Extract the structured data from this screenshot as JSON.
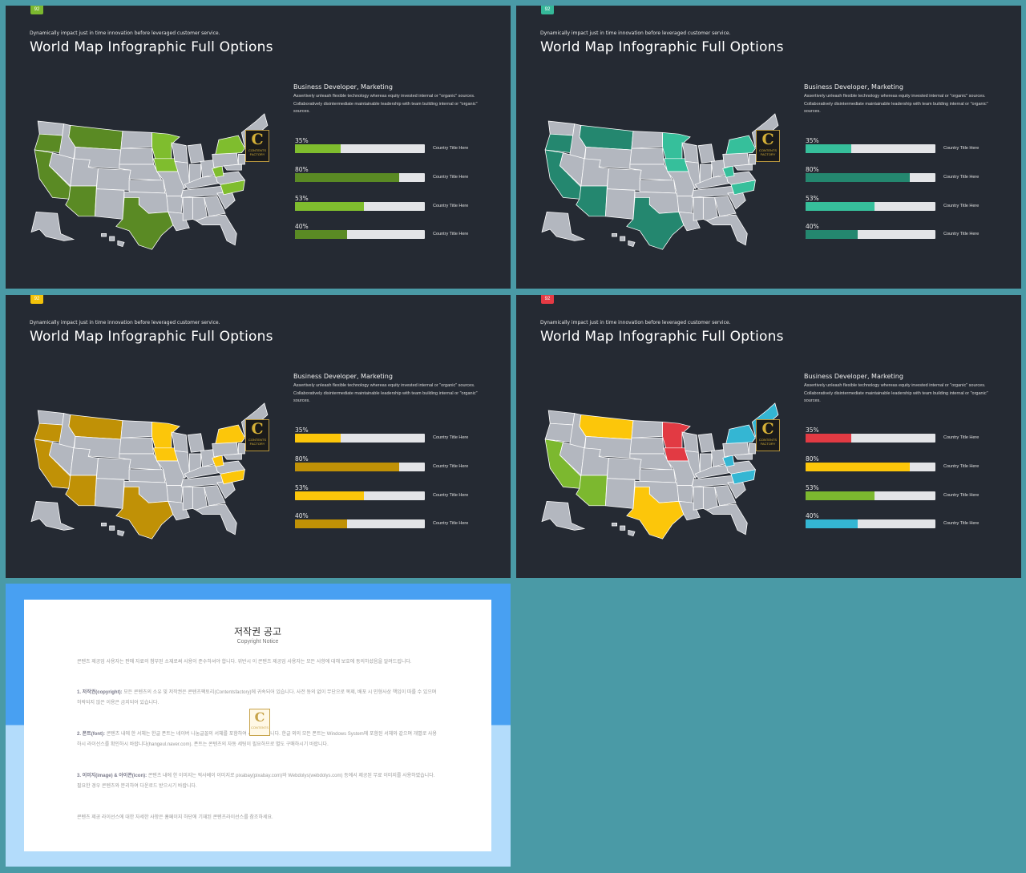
{
  "slides": [
    {
      "badge": "92",
      "badge_color": "#7cb82f",
      "subtitle": "Dynamically impact just in time innovation  before leveraged customer service.",
      "title": "World Map Infographic Full Options",
      "info_heading": "Business  Developer, Marketing",
      "info_text": "Assertively unleash flexible technology whereas equity invested internal or \"organic\" sources. Collaboratively disintermediate maintainable leadership with team building internal or \"organic\" sources.",
      "logo_letter": "C",
      "logo_text": "CONTENTS\nFACTORY",
      "colors": {
        "light": "#7fbd2e",
        "dark": "#5a8a24",
        "base": "#b3b7bf"
      },
      "bars": [
        {
          "pct_label": "35%",
          "value": 0.35,
          "color": "#7fbd2e",
          "label": "Country Title Here"
        },
        {
          "pct_label": "80%",
          "value": 0.8,
          "color": "#5a8a24",
          "label": "Country Title Here"
        },
        {
          "pct_label": "53%",
          "value": 0.53,
          "color": "#7fbd2e",
          "label": "Country Title Here"
        },
        {
          "pct_label": "40%",
          "value": 0.4,
          "color": "#5a8a24",
          "label": "Country Title Here"
        }
      ]
    },
    {
      "badge": "92",
      "badge_color": "#35b899",
      "subtitle": "Dynamically impact just in time innovation  before leveraged customer service.",
      "title": "World Map Infographic Full Options",
      "info_heading": "Business  Developer, Marketing",
      "info_text": "Assertively unleash flexible technology whereas equity invested internal or \"organic\" sources. Collaboratively disintermediate maintainable leadership with team building internal or \"organic\" sources.",
      "logo_letter": "C",
      "logo_text": "CONTENTS\nFACTORY",
      "colors": {
        "light": "#36bf9b",
        "dark": "#24876f",
        "base": "#b3b7bf"
      },
      "bars": [
        {
          "pct_label": "35%",
          "value": 0.35,
          "color": "#36bf9b",
          "label": "Country Title Here"
        },
        {
          "pct_label": "80%",
          "value": 0.8,
          "color": "#24876f",
          "label": "Country Title Here"
        },
        {
          "pct_label": "53%",
          "value": 0.53,
          "color": "#36bf9b",
          "label": "Country Title Here"
        },
        {
          "pct_label": "40%",
          "value": 0.4,
          "color": "#24876f",
          "label": "Country Title Here"
        }
      ]
    },
    {
      "badge": "92",
      "badge_color": "#f2c20a",
      "subtitle": "Dynamically impact just in time innovation  before leveraged customer service.",
      "title": "World Map Infographic Full Options",
      "info_heading": "Business  Developer, Marketing",
      "info_text": "Assertively unleash flexible technology whereas equity invested internal or \"organic\" sources. Collaboratively disintermediate maintainable leadership with team building internal or \"organic\" sources.",
      "logo_letter": "C",
      "logo_text": "CONTENTS\nFACTORY",
      "colors": {
        "light": "#fcc60a",
        "dark": "#c09106",
        "base": "#b3b7bf"
      },
      "bars": [
        {
          "pct_label": "35%",
          "value": 0.35,
          "color": "#fcc60a",
          "label": "Country Title Here"
        },
        {
          "pct_label": "80%",
          "value": 0.8,
          "color": "#c09106",
          "label": "Country Title Here"
        },
        {
          "pct_label": "53%",
          "value": 0.53,
          "color": "#fcc60a",
          "label": "Country Title Here"
        },
        {
          "pct_label": "40%",
          "value": 0.4,
          "color": "#c09106",
          "label": "Country Title Here"
        }
      ]
    },
    {
      "badge": "92",
      "badge_color": "#e53a44",
      "subtitle": "Dynamically impact just in time innovation  before leveraged customer service.",
      "title": "World Map Infographic Full Options",
      "info_heading": "Business  Developer, Marketing",
      "info_text": "Assertively unleash flexible technology whereas equity invested internal or \"organic\" sources. Collaboratively disintermediate maintainable leadership with team building internal or \"organic\" sources.",
      "logo_letter": "C",
      "logo_text": "CONTENTS\nFACTORY",
      "colors": {
        "red": "#e23a43",
        "yellow": "#fcc60a",
        "green": "#7cb82f",
        "blue": "#34b6d3",
        "base": "#b3b7bf"
      },
      "bars": [
        {
          "pct_label": "35%",
          "value": 0.35,
          "color": "#e23a43",
          "label": "Country Title Here"
        },
        {
          "pct_label": "80%",
          "value": 0.8,
          "color": "#fcc60a",
          "label": "Country Title Here"
        },
        {
          "pct_label": "53%",
          "value": 0.53,
          "color": "#7cb82f",
          "label": "Country Title Here"
        },
        {
          "pct_label": "40%",
          "value": 0.4,
          "color": "#34b6d3",
          "label": "Country Title Here"
        }
      ]
    }
  ],
  "notice": {
    "title": "저작권 공고",
    "subtitle": "Copyright Notice",
    "intro": "콘텐츠 제공업 사용자는 판매 자료의 첨부된 소재로써 사용이 준수하셔야 합니다. 위반시 이 콘텐츠 제공업 사용자는 모든 사항에 대해 보호에 동의하셨음을 알려드립니다.",
    "p1_head": "1. 저작권(copyright):",
    "p1_body": " 모든 콘텐츠의 소유 및 저작권은 콘텐츠팩토리(Contentsfactory)에 귀속되어 있습니다. 사전 동의 없이 무단으로 복제, 배포 시 민형사상 책임이 따를 수 있으며 허락되지 않은 이용은 금지되어 있습니다.",
    "p2_head": "2. 폰트(font):",
    "p2_body": " 콘텐츠 내에 한 서체는 한글 폰트는 네이버 나눔글꼴의 서체를 포함하여 사용되었습니다. 한글 외의 모든 폰트는 Windows System에 포함된 서체와 같으며 개별로 사용하시 라이선스를 확인하시 바랍니다(hangeul.naver.com). 폰트는 콘텐츠의 자동 세팅이 필요하므로 별도 구매하시기 바랍니다.",
    "p3_head": "3. 이미지(image) & 아이콘(icon):",
    "p3_body": " 콘텐츠 내에 한 이미지는 픽사베이 이미지로 pixabay(pixabay.com)와 Webdolys(webdolys.com) 등에서 제공된 무료 이미지를 사용하였습니다. 필요한 경우 콘텐츠와 분리하여 다운로드 받으시기 바랍니다.",
    "outro": "콘텐츠 제공 라이선스에 대한 자세한 사항은 홈페이지 하단에 기재된 콘텐츠라이선스를 참조하세요.",
    "logo_letter": "C",
    "logo_text": "CONTENTS"
  }
}
